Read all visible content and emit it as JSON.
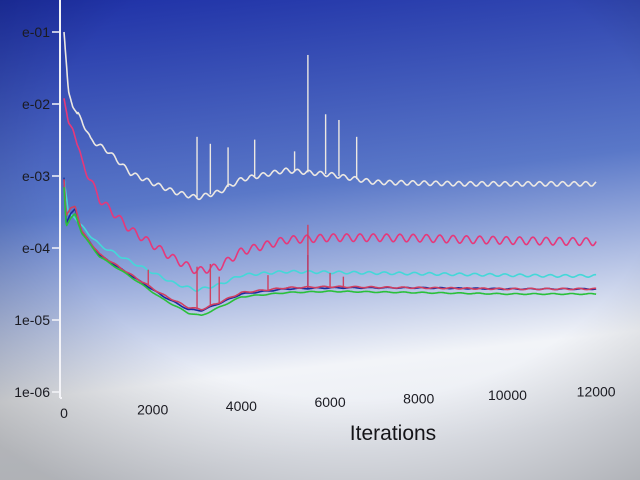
{
  "chart_data": {
    "type": "line",
    "title": "",
    "xlabel": "Iterations",
    "ylabel": "",
    "xlim": [
      0,
      12200
    ],
    "ylim": [
      1e-06,
      0.1
    ],
    "yscale": "log",
    "legend": "none",
    "grid": false,
    "x_ticks": [
      {
        "value": 0,
        "label": "0"
      },
      {
        "value": 2000,
        "label": "2000"
      },
      {
        "value": 4000,
        "label": "4000"
      },
      {
        "value": 6000,
        "label": "6000"
      },
      {
        "value": 8000,
        "label": "8000"
      },
      {
        "value": 10000,
        "label": "10000"
      },
      {
        "value": 12000,
        "label": "12000"
      }
    ],
    "y_ticks": [
      {
        "value": 0.1,
        "label": "e-01"
      },
      {
        "value": 0.01,
        "label": "e-02"
      },
      {
        "value": 0.001,
        "label": "e-03"
      },
      {
        "value": 0.0001,
        "label": "e-04"
      },
      {
        "value": 1e-05,
        "label": "1e-05"
      },
      {
        "value": 1e-06,
        "label": "1e-06"
      }
    ],
    "background": {
      "top": "#1d2fa6",
      "mid": "#5a78c8",
      "bottom": "#f2f4f8"
    },
    "axis_color": "#f4f4f8",
    "series": [
      {
        "color": "#ece8e2",
        "x": [
          0,
          100,
          200,
          400,
          600,
          1000,
          1500,
          2000,
          2500,
          3000,
          3500,
          4000,
          5000,
          6000,
          7000,
          8000,
          9000,
          10000,
          11000,
          12000
        ],
        "y": [
          0.1,
          0.015,
          0.009,
          0.006,
          0.0032,
          0.0022,
          0.0011,
          0.0008,
          0.0006,
          0.0005,
          0.0006,
          0.0009,
          0.0012,
          0.00105,
          0.00082,
          0.0008,
          0.00078,
          0.00078,
          0.00078,
          0.00078
        ],
        "oscillation": 0.07,
        "period": 260,
        "spikes": [
          {
            "x": 3000,
            "y": 0.0035
          },
          {
            "x": 3300,
            "y": 0.0028
          },
          {
            "x": 3700,
            "y": 0.0025
          },
          {
            "x": 4300,
            "y": 0.0032
          },
          {
            "x": 5200,
            "y": 0.0022
          },
          {
            "x": 5500,
            "y": 0.048
          },
          {
            "x": 5900,
            "y": 0.0072
          },
          {
            "x": 6200,
            "y": 0.006
          },
          {
            "x": 6600,
            "y": 0.0035
          }
        ]
      },
      {
        "color": "#e6387a",
        "x": [
          0,
          100,
          200,
          400,
          800,
          1500,
          2500,
          3000,
          3500,
          4000,
          5000,
          6000,
          7000,
          8000,
          9000,
          10000,
          11000,
          12000
        ],
        "y": [
          0.012,
          0.0055,
          0.0045,
          0.0016,
          0.00048,
          0.00018,
          7e-05,
          4.8e-05,
          5.5e-05,
          9e-05,
          0.00013,
          0.00014,
          0.00014,
          0.000138,
          0.000132,
          0.000128,
          0.000125,
          0.000123
        ],
        "oscillation": 0.12,
        "period": 300,
        "spikes": []
      },
      {
        "color": "#44d8d8",
        "x": [
          0,
          100,
          200,
          400,
          800,
          1500,
          2500,
          3000,
          3500,
          4000,
          5000,
          6000,
          7000,
          8000,
          9000,
          10000,
          11000,
          12000
        ],
        "y": [
          0.00095,
          0.0003,
          0.00028,
          0.0002,
          0.00011,
          6.5e-05,
          3.2e-05,
          2.6e-05,
          3.1e-05,
          4.2e-05,
          4.7e-05,
          4.6e-05,
          4.5e-05,
          4.4e-05,
          4.3e-05,
          4.2e-05,
          4.1e-05,
          4.1e-05
        ],
        "oscillation": 0.04,
        "period": 340,
        "spikes": []
      },
      {
        "color": "#1a2c9e",
        "x": [
          0,
          50,
          150,
          250,
          400,
          800,
          1500,
          2200,
          2800,
          3100,
          3500,
          4000,
          5000,
          6000,
          7000,
          8000,
          9000,
          10000,
          11000,
          12000
        ],
        "y": [
          0.00095,
          0.00022,
          0.0003,
          0.00035,
          0.00017,
          8e-05,
          4.2e-05,
          2.2e-05,
          1.4e-05,
          1.35e-05,
          1.7e-05,
          2.3e-05,
          2.7e-05,
          2.8e-05,
          2.8e-05,
          2.8e-05,
          2.75e-05,
          2.7e-05,
          2.7e-05,
          2.7e-05
        ],
        "oscillation": 0.015,
        "period": 400,
        "spikes": [
          {
            "x": 5500,
            "y": 8e-05
          }
        ]
      },
      {
        "color": "#d04060",
        "x": [
          0,
          50,
          150,
          250,
          400,
          800,
          1500,
          2200,
          2800,
          3100,
          3500,
          4000,
          5000,
          6000,
          7000,
          8000,
          9000,
          10000,
          11000,
          12000
        ],
        "y": [
          0.0009,
          0.00028,
          0.00036,
          0.00038,
          0.00017,
          8.2e-05,
          4.3e-05,
          2.3e-05,
          1.5e-05,
          1.4e-05,
          1.75e-05,
          2.4e-05,
          2.8e-05,
          2.9e-05,
          2.85e-05,
          2.8e-05,
          2.75e-05,
          2.7e-05,
          2.7e-05,
          2.7e-05
        ],
        "oscillation": 0.02,
        "period": 360,
        "spikes": [
          {
            "x": 1900,
            "y": 5e-05
          },
          {
            "x": 3000,
            "y": 5.5e-05
          },
          {
            "x": 3300,
            "y": 6e-05
          },
          {
            "x": 3500,
            "y": 4e-05
          },
          {
            "x": 4600,
            "y": 4.2e-05
          },
          {
            "x": 5500,
            "y": 0.00021
          },
          {
            "x": 6000,
            "y": 4.5e-05
          },
          {
            "x": 6300,
            "y": 4e-05
          }
        ]
      },
      {
        "color": "#2ac03a",
        "x": [
          0,
          50,
          150,
          250,
          400,
          800,
          1500,
          2200,
          2800,
          3100,
          3500,
          4000,
          5000,
          6000,
          7000,
          8000,
          9000,
          10000,
          11000,
          12000
        ],
        "y": [
          0.0007,
          0.0002,
          0.00026,
          0.0003,
          0.00016,
          7.6e-05,
          4e-05,
          2e-05,
          1.25e-05,
          1.15e-05,
          1.5e-05,
          2.1e-05,
          2.4e-05,
          2.5e-05,
          2.45e-05,
          2.4e-05,
          2.35e-05,
          2.3e-05,
          2.3e-05,
          2.3e-05
        ],
        "oscillation": 0.015,
        "period": 420,
        "spikes": []
      }
    ]
  }
}
